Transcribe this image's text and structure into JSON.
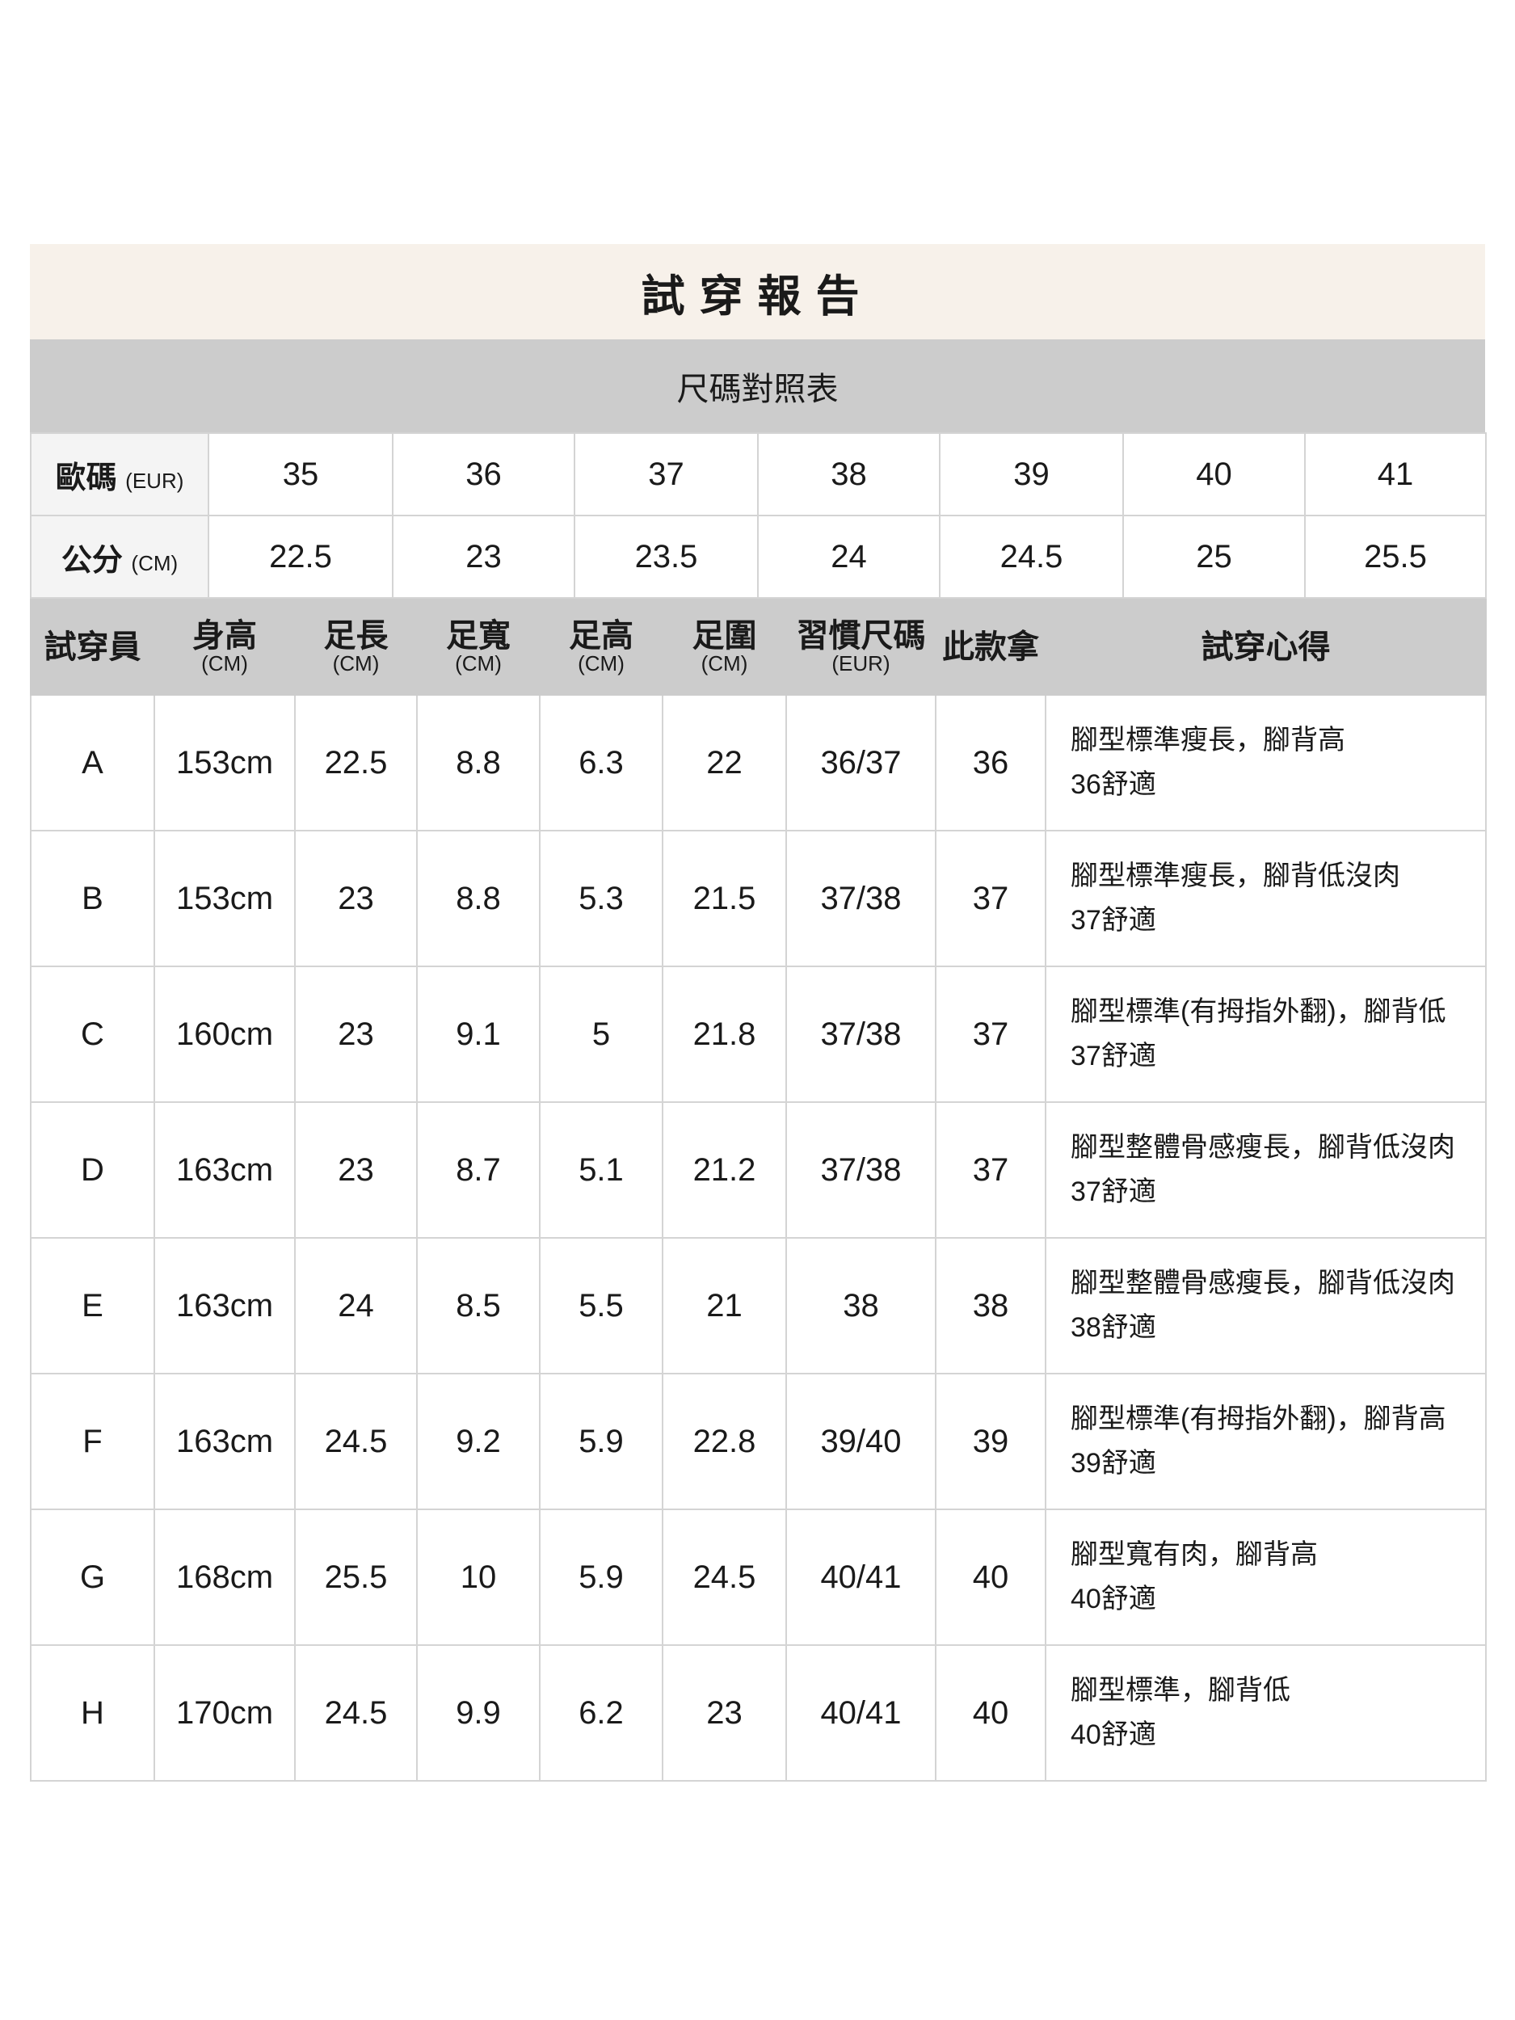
{
  "title": "試穿報告",
  "subtitle": "尺碼對照表",
  "size_chart": {
    "eur_label": "歐碼",
    "eur_unit": "(EUR)",
    "cm_label": "公分",
    "cm_unit": "(CM)",
    "eur": [
      "35",
      "36",
      "37",
      "38",
      "39",
      "40",
      "41"
    ],
    "cm": [
      "22.5",
      "23",
      "23.5",
      "24",
      "24.5",
      "25",
      "25.5"
    ]
  },
  "headers": [
    {
      "label": "試穿員",
      "unit": ""
    },
    {
      "label": "身高",
      "unit": "(CM)"
    },
    {
      "label": "足長",
      "unit": "(CM)"
    },
    {
      "label": "足寬",
      "unit": "(CM)"
    },
    {
      "label": "足高",
      "unit": "(CM)"
    },
    {
      "label": "足圍",
      "unit": "(CM)"
    },
    {
      "label": "習慣尺碼",
      "unit": "(EUR)"
    },
    {
      "label": "此款拿",
      "unit": ""
    },
    {
      "label": "試穿心得",
      "unit": ""
    }
  ],
  "rows": [
    [
      "A",
      "153cm",
      "22.5",
      "8.8",
      "6.3",
      "22",
      "36/37",
      "36",
      "腳型標準瘦長，腳背高",
      "36舒適"
    ],
    [
      "B",
      "153cm",
      "23",
      "8.8",
      "5.3",
      "21.5",
      "37/38",
      "37",
      "腳型標準瘦長，腳背低沒肉",
      "37舒適"
    ],
    [
      "C",
      "160cm",
      "23",
      "9.1",
      "5",
      "21.8",
      "37/38",
      "37",
      "腳型標準(有拇指外翻)，腳背低",
      "37舒適"
    ],
    [
      "D",
      "163cm",
      "23",
      "8.7",
      "5.1",
      "21.2",
      "37/38",
      "37",
      "腳型整體骨感瘦長，腳背低沒肉",
      "37舒適"
    ],
    [
      "E",
      "163cm",
      "24",
      "8.5",
      "5.5",
      "21",
      "38",
      "38",
      "腳型整體骨感瘦長，腳背低沒肉",
      "38舒適"
    ],
    [
      "F",
      "163cm",
      "24.5",
      "9.2",
      "5.9",
      "22.8",
      "39/40",
      "39",
      "腳型標準(有拇指外翻)，腳背高",
      "39舒適"
    ],
    [
      "G",
      "168cm",
      "25.5",
      "10",
      "5.9",
      "24.5",
      "40/41",
      "40",
      "腳型寬有肉，腳背高",
      "40舒適"
    ],
    [
      "H",
      "170cm",
      "24.5",
      "9.9",
      "6.2",
      "23",
      "40/41",
      "40",
      "腳型標準，腳背低",
      "40舒適"
    ]
  ]
}
